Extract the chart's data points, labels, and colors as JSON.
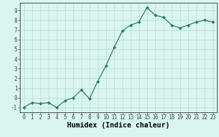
{
  "xlabel": "Humidex (Indice chaleur)",
  "ylabel": "",
  "x_values": [
    0,
    1,
    2,
    3,
    4,
    5,
    6,
    7,
    8,
    9,
    10,
    11,
    12,
    13,
    14,
    15,
    16,
    17,
    18,
    19,
    20,
    21,
    22,
    23
  ],
  "y_values": [
    -1,
    -0.5,
    -0.6,
    -0.5,
    -1,
    -0.3,
    0,
    0.8,
    -0.1,
    1.7,
    3.3,
    5.2,
    6.9,
    7.5,
    7.8,
    9.3,
    8.5,
    8.3,
    7.5,
    7.2,
    7.5,
    7.8,
    8.0,
    7.8
  ],
  "line_color": "#2a7a6a",
  "marker": "D",
  "marker_size": 2.2,
  "background_color": "#d8f5f0",
  "grid_color": "#c0ddd8",
  "ylim": [
    -1.5,
    9.8
  ],
  "xlim": [
    -0.5,
    23.5
  ],
  "yticks": [
    -1,
    0,
    1,
    2,
    3,
    4,
    5,
    6,
    7,
    8,
    9
  ],
  "xticks": [
    0,
    1,
    2,
    3,
    4,
    5,
    6,
    7,
    8,
    9,
    10,
    11,
    12,
    13,
    14,
    15,
    16,
    17,
    18,
    19,
    20,
    21,
    22,
    23
  ],
  "spine_color": "#444444",
  "xlabel_fontsize": 7.5,
  "tick_fontsize": 5.5
}
